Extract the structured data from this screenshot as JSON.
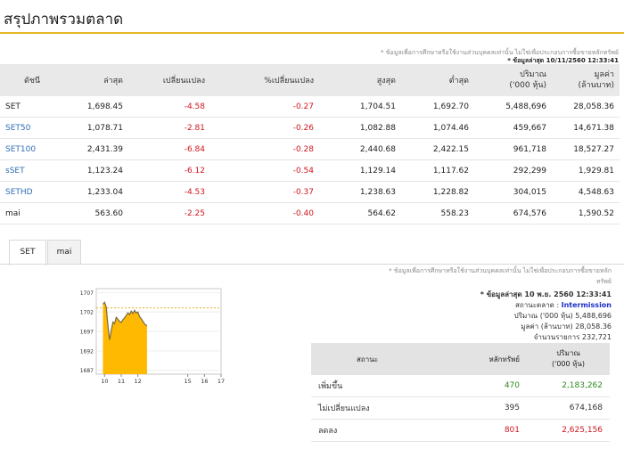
{
  "page": {
    "title": "สรุปภาพรวมตลาด"
  },
  "notes": {
    "top_disclaimer": "* ข้อมูลเพื่อการศึกษาหรือใช้งานส่วนบุคคลเท่านั้น ไม่ใช่เพื่อประกอบการซื้อขายหลักทรัพย์",
    "top_timestamp": "* ข้อมูลล่าสุด 10/11/2560 12:33:41"
  },
  "index_table": {
    "headers": [
      "ดัชนี",
      "ล่าสุด",
      "เปลี่ยนแปลง",
      "%เปลี่ยนแปลง",
      "สูงสุด",
      "ต่ำสุด",
      "ปริมาณ\n('000 หุ้น)",
      "มูลค่า\n(ล้านบาท)"
    ],
    "rows": [
      {
        "name": "SET",
        "last": "1,698.45",
        "chg": "-4.58",
        "pct": "-0.27",
        "high": "1,704.51",
        "low": "1,692.70",
        "vol": "5,488,696",
        "val": "28,058.36"
      },
      {
        "name": "SET50",
        "last": "1,078.71",
        "chg": "-2.81",
        "pct": "-0.26",
        "high": "1,082.88",
        "low": "1,074.46",
        "vol": "459,667",
        "val": "14,671.38"
      },
      {
        "name": "SET100",
        "last": "2,431.39",
        "chg": "-6.84",
        "pct": "-0.28",
        "high": "2,440.68",
        "low": "2,422.15",
        "vol": "961,718",
        "val": "18,527.27"
      },
      {
        "name": "sSET",
        "last": "1,123.24",
        "chg": "-6.12",
        "pct": "-0.54",
        "high": "1,129.14",
        "low": "1,117.62",
        "vol": "292,299",
        "val": "1,929.81"
      },
      {
        "name": "SETHD",
        "last": "1,233.04",
        "chg": "-4.53",
        "pct": "-0.37",
        "high": "1,238.63",
        "low": "1,228.82",
        "vol": "304,015",
        "val": "4,548.63"
      },
      {
        "name": "mai",
        "last": "563.60",
        "chg": "-2.25",
        "pct": "-0.40",
        "high": "564.62",
        "low": "558.23",
        "vol": "674,576",
        "val": "1,590.52"
      }
    ]
  },
  "tabs": [
    {
      "label": "SET",
      "active": true
    },
    {
      "label": "mai",
      "active": false
    }
  ],
  "set_info": {
    "disclaimer_1": "* ข้อมูลเพื่อการศึกษาหรือใช้งานส่วนบุคคลเท่านั้น ไม่ใช่เพื่อประกอบการซื้อขายหลัก",
    "disclaimer_2": "ทรัพย์",
    "timestamp": "* ข้อมูลล่าสุด 10 พ.ย. 2560 12:33:41",
    "status_label": "สถานะตลาด :",
    "status_value": "Intermission",
    "volume_label": "ปริมาณ ('000 หุ้น)",
    "volume_value": "5,488,696",
    "value_label": "มูลค่า (ล้านบาท)",
    "value_value": "28,058.36",
    "trades_label": "จำนวนรายการ",
    "trades_value": "232,721"
  },
  "adv_table": {
    "headers": [
      "สถานะ",
      "หลักทรัพย์",
      "ปริมาณ\n('000 หุ้น)"
    ],
    "rows": [
      {
        "label": "เพิ่มขึ้น",
        "count": "470",
        "volume": "2,183,262",
        "color": "#2c8a1b"
      },
      {
        "label": "ไม่เปลี่ยนแปลง",
        "count": "395",
        "volume": "674,168",
        "color": "#333333"
      },
      {
        "label": "ลดลง",
        "count": "801",
        "volume": "2,625,156",
        "color": "#d0161e"
      }
    ]
  },
  "chart_data": {
    "type": "area",
    "title": "",
    "xlabel": "",
    "ylabel": "",
    "x_ticks": [
      "10",
      "11",
      "12",
      "15",
      "16",
      "17"
    ],
    "y_ticks": [
      "1707",
      "1702",
      "1697",
      "1692",
      "1687"
    ],
    "ylim": [
      1686,
      1708
    ],
    "xlim": [
      9.5,
      17
    ],
    "reference_line": 1703.03,
    "fill_color": "#ffb900",
    "series": [
      {
        "x": [
          9.9,
          10.0,
          10.1,
          10.2,
          10.3,
          10.4,
          10.5,
          10.6,
          10.7,
          10.8,
          10.9,
          11.0,
          11.1,
          11.2,
          11.3,
          11.4,
          11.5,
          11.6,
          11.7,
          11.8,
          11.9,
          12.0,
          12.1,
          12.2,
          12.3,
          12.4,
          12.55
        ],
        "y": [
          1704.0,
          1704.5,
          1703.2,
          1698.5,
          1694.8,
          1697.2,
          1699.4,
          1699.0,
          1700.6,
          1700.1,
          1699.6,
          1699.3,
          1700.0,
          1700.5,
          1701.1,
          1701.8,
          1701.3,
          1702.2,
          1701.6,
          1702.4,
          1701.7,
          1702.0,
          1700.8,
          1700.3,
          1699.6,
          1698.9,
          1698.45
        ]
      }
    ]
  }
}
